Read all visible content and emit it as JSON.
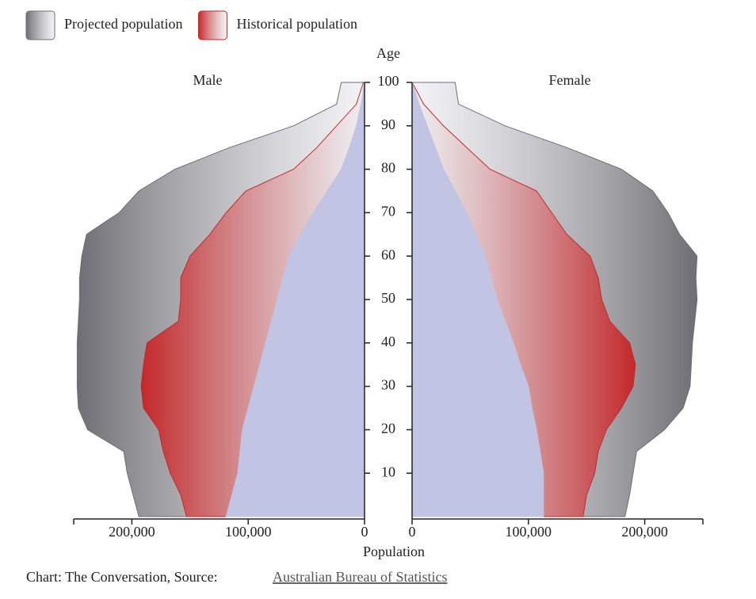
{
  "chart_data": {
    "type": "pyramid",
    "ylabel": "Age",
    "xlabel": "Population",
    "male_label": "Male",
    "female_label": "Female",
    "source_prefix": "Chart: The Conversation, Source:",
    "source_link": "Australian Bureau of Statistics",
    "ages": [
      0,
      5,
      10,
      15,
      20,
      25,
      30,
      35,
      40,
      45,
      50,
      55,
      60,
      65,
      70,
      75,
      80,
      85,
      90,
      95,
      100
    ],
    "ylim": [
      0,
      100
    ],
    "yticks": [
      10,
      20,
      30,
      40,
      50,
      60,
      70,
      80,
      90,
      100
    ],
    "xlim": [
      0,
      250000
    ],
    "xticks": [
      0,
      {
        "value": 100000,
        "label": "100,000"
      },
      {
        "value": 200000,
        "label": "200,000"
      }
    ],
    "series": [
      {
        "name": "Projected population",
        "color": "#6e6e74",
        "male": [
          194000,
          199000,
          204000,
          207000,
          238000,
          246000,
          247000,
          247000,
          247000,
          246000,
          245000,
          245000,
          243000,
          239000,
          211000,
          194000,
          163000,
          116000,
          61000,
          24000,
          20000
        ],
        "female": [
          183000,
          187000,
          190000,
          193000,
          217000,
          233000,
          239000,
          240000,
          241000,
          243000,
          245000,
          244000,
          245000,
          230000,
          220000,
          207000,
          180000,
          133000,
          80000,
          40000,
          37000
        ]
      },
      {
        "name": "Historical population",
        "color": "#c4282a",
        "male": [
          153000,
          158000,
          167000,
          173000,
          177000,
          190000,
          192000,
          190000,
          187000,
          160000,
          158000,
          158000,
          150000,
          133000,
          119000,
          102000,
          61000,
          41000,
          24000,
          7000,
          1000
        ],
        "female": [
          147000,
          150000,
          157000,
          160000,
          167000,
          180000,
          190000,
          192000,
          187000,
          170000,
          163000,
          160000,
          153000,
          133000,
          120000,
          107000,
          67000,
          47000,
          27000,
          10000,
          0
        ]
      },
      {
        "color": "#c2c4e4",
        "male": [
          119000,
          114000,
          109000,
          107000,
          105000,
          100000,
          95000,
          90000,
          85000,
          80000,
          75000,
          70000,
          65000,
          55000,
          44000,
          32000,
          20000,
          13000,
          7000,
          3000,
          0
        ],
        "female": [
          113000,
          113000,
          113000,
          110000,
          107000,
          103000,
          100000,
          93000,
          87000,
          80000,
          73000,
          68000,
          63000,
          55000,
          47000,
          37000,
          27000,
          20000,
          13000,
          6000,
          0
        ]
      }
    ]
  }
}
